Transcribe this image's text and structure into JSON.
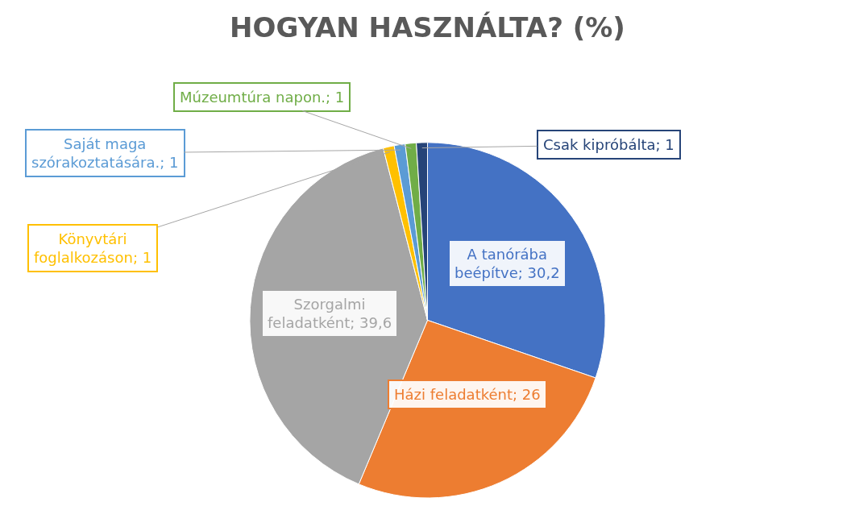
{
  "chart_data": {
    "type": "pie",
    "title": "HOGYAN HASZNÁLTA? (%)",
    "categories": [
      "A tanórába beépítve",
      "Házi feladatként",
      "Szorgalmi feladatként",
      "Könyvtári foglalkozáson",
      "Saját maga szórakoztatására.",
      "Múzeumtúra napon.",
      "Csak kipróbálta"
    ],
    "values": [
      30.2,
      26,
      39.6,
      1,
      1,
      1,
      1
    ],
    "value_labels": [
      "30,2",
      "26",
      "39,6",
      "1",
      "1",
      "1",
      "1"
    ],
    "colors": [
      "#4472c4",
      "#ed7d31",
      "#a5a5a5",
      "#ffc000",
      "#5b9bd5",
      "#70ad47",
      "#264478"
    ],
    "legend": false
  }
}
